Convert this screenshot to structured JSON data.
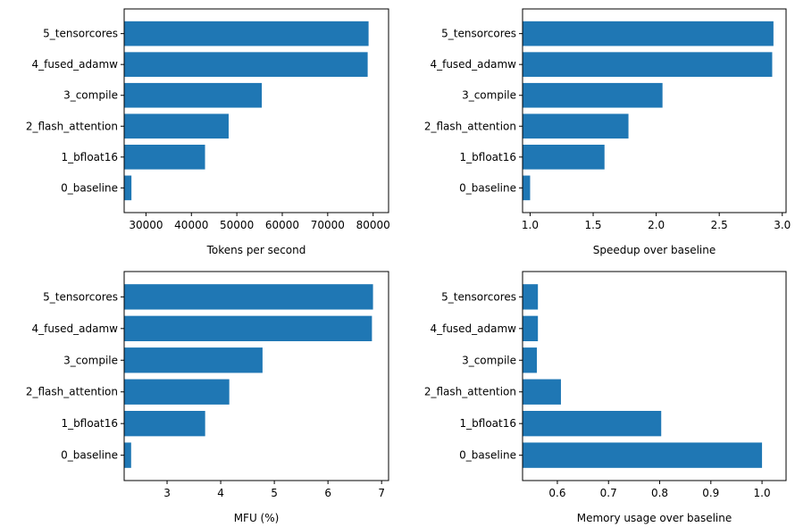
{
  "chart_data": [
    {
      "type": "bar",
      "orientation": "horizontal",
      "categories": [
        "0_baseline",
        "1_bfloat16",
        "2_flash_attention",
        "3_compile",
        "4_fused_adamw",
        "5_tensorcores"
      ],
      "values": [
        26800,
        43000,
        48200,
        55500,
        78800,
        79000
      ],
      "xlabel": "Tokens per second",
      "ylabel": "",
      "xlim": [
        25200,
        83400
      ],
      "xticks": [
        30000,
        40000,
        50000,
        60000,
        70000,
        80000
      ],
      "xtick_labels": [
        "30000",
        "40000",
        "50000",
        "60000",
        "70000",
        "80000"
      ],
      "color": "#1f77b4"
    },
    {
      "type": "bar",
      "orientation": "horizontal",
      "categories": [
        "0_baseline",
        "1_bfloat16",
        "2_flash_attention",
        "3_compile",
        "4_fused_adamw",
        "5_tensorcores"
      ],
      "values": [
        1.0,
        1.59,
        1.78,
        2.05,
        2.92,
        2.93
      ],
      "xlabel": "Speedup over baseline",
      "ylabel": "",
      "xlim": [
        0.94,
        3.03
      ],
      "xticks": [
        1.0,
        1.5,
        2.0,
        2.5,
        3.0
      ],
      "xtick_labels": [
        "1.0",
        "1.5",
        "2.0",
        "2.5",
        "3.0"
      ],
      "color": "#1f77b4"
    },
    {
      "type": "bar",
      "orientation": "horizontal",
      "categories": [
        "0_baseline",
        "1_bfloat16",
        "2_flash_attention",
        "3_compile",
        "4_fused_adamw",
        "5_tensorcores"
      ],
      "values": [
        2.33,
        3.71,
        4.16,
        4.78,
        6.82,
        6.84
      ],
      "xlabel": "MFU (%)",
      "ylabel": "",
      "xlim": [
        2.2,
        7.13
      ],
      "xticks": [
        3,
        4,
        5,
        6,
        7
      ],
      "xtick_labels": [
        "3",
        "4",
        "5",
        "6",
        "7"
      ],
      "color": "#1f77b4"
    },
    {
      "type": "bar",
      "orientation": "horizontal",
      "categories": [
        "0_baseline",
        "1_bfloat16",
        "2_flash_attention",
        "3_compile",
        "4_fused_adamw",
        "5_tensorcores"
      ],
      "values": [
        1.0,
        0.803,
        0.607,
        0.56,
        0.562,
        0.562
      ],
      "xlabel": "Memory usage over baseline",
      "ylabel": "",
      "xlim": [
        0.532,
        1.047
      ],
      "xticks": [
        0.6,
        0.7,
        0.8,
        0.9,
        1.0
      ],
      "xtick_labels": [
        "0.6",
        "0.7",
        "0.8",
        "0.9",
        "1.0"
      ],
      "color": "#1f77b4"
    }
  ]
}
